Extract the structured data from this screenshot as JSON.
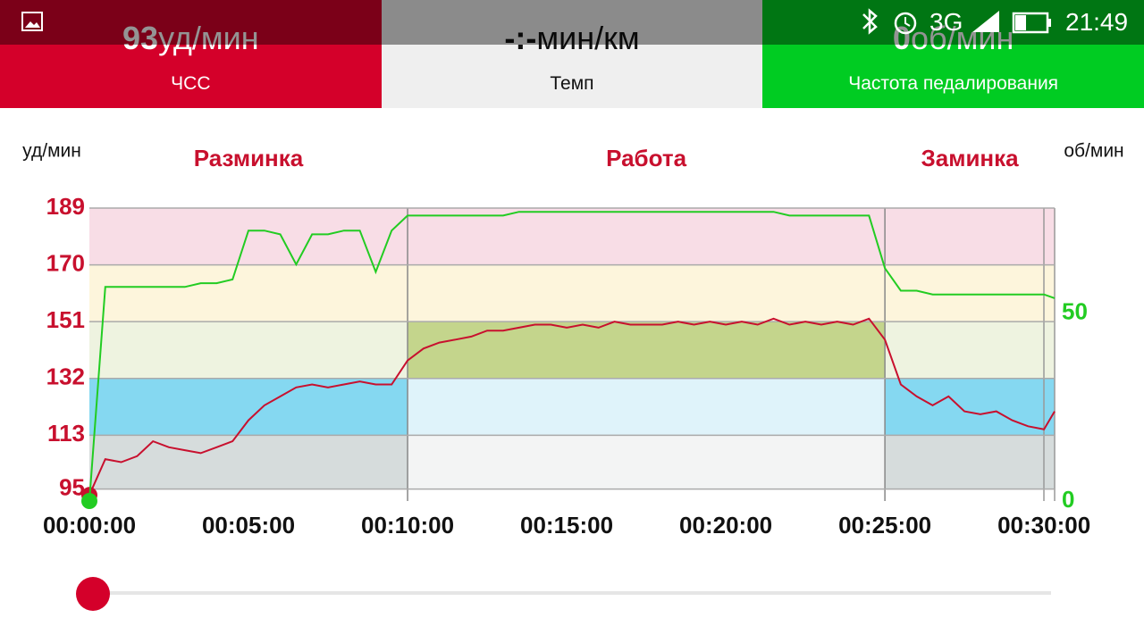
{
  "status_bar": {
    "network": "3G",
    "time": "21:49"
  },
  "tiles": [
    {
      "value": 93,
      "unit": "уд/мин",
      "label": "ЧСС",
      "color": "#d4002a"
    },
    {
      "value": "-:-",
      "unit": "мин/км",
      "label": "Темп",
      "color": "#efefef"
    },
    {
      "value": 0,
      "unit": "об/мин",
      "label": "Частота педалирования",
      "color": "#00cc22"
    }
  ],
  "chart_data": {
    "type": "line",
    "ylabel": "уд/мин",
    "y2label": "об/мин",
    "x": [
      0,
      30,
      60,
      90,
      120,
      150,
      180,
      210,
      240,
      270,
      300,
      330,
      360,
      390,
      420,
      450,
      480,
      510,
      540,
      570,
      600,
      630,
      660,
      690,
      720,
      750,
      780,
      810,
      840,
      870,
      900,
      930,
      960,
      990,
      1020,
      1050,
      1080,
      1110,
      1140,
      1170,
      1200,
      1230,
      1260,
      1290,
      1320,
      1350,
      1380,
      1410,
      1440,
      1470,
      1500,
      1530,
      1560,
      1590,
      1620,
      1650,
      1680,
      1710,
      1740,
      1770,
      1800,
      1820
    ],
    "xlim": [
      0,
      1820
    ],
    "xticks": [
      {
        "value": 0,
        "label": "00:00:00"
      },
      {
        "value": 300,
        "label": "00:05:00"
      },
      {
        "value": 600,
        "label": "00:10:00"
      },
      {
        "value": 900,
        "label": "00:15:00"
      },
      {
        "value": 1200,
        "label": "00:20:00"
      },
      {
        "value": 1500,
        "label": "00:25:00"
      },
      {
        "value": 1800,
        "label": "00:30:00"
      }
    ],
    "ylim": [
      91,
      189
    ],
    "yticks": [
      95,
      113,
      132,
      151,
      170,
      189
    ],
    "y2lim": [
      0,
      78
    ],
    "y2ticks": [
      0,
      50
    ],
    "zones": [
      {
        "range": [
          95,
          113
        ],
        "color": "#f3f4f4"
      },
      {
        "range": [
          113,
          132
        ],
        "color": "#dff3fa"
      },
      {
        "range": [
          132,
          151
        ],
        "color": "#eef3e0"
      },
      {
        "range": [
          151,
          170
        ],
        "color": "#fdf5dc"
      },
      {
        "range": [
          170,
          189
        ],
        "color": "#f8dde6"
      }
    ],
    "phases": [
      {
        "label": "Разминка",
        "range": [
          0,
          600
        ],
        "highlight": [
          {
            "zone": 0,
            "color": "#d6dcdc"
          },
          {
            "zone": 1,
            "color": "#85d8f1"
          }
        ]
      },
      {
        "label": "Работа",
        "range": [
          600,
          1500
        ],
        "highlight": [
          {
            "zone": 2,
            "color": "#c4d58c"
          }
        ]
      },
      {
        "label": "Заминка",
        "range": [
          1500,
          1820
        ],
        "highlight": [
          {
            "zone": 0,
            "color": "#d6dcdc"
          },
          {
            "zone": 1,
            "color": "#85d8f1"
          }
        ]
      }
    ],
    "series": [
      {
        "color": "#c8102e",
        "values": [
          93,
          105,
          104,
          106,
          111,
          109,
          108,
          107,
          109,
          111,
          118,
          123,
          126,
          129,
          130,
          129,
          130,
          131,
          130,
          130,
          138,
          142,
          144,
          145,
          146,
          148,
          148,
          149,
          150,
          150,
          149,
          150,
          149,
          151,
          150,
          150,
          150,
          151,
          150,
          151,
          150,
          151,
          150,
          152,
          150,
          151,
          150,
          151,
          150,
          152,
          145,
          130,
          126,
          123,
          126,
          121,
          120,
          121,
          118,
          116,
          115,
          121
        ]
      },
      {
        "color": "#22cc22",
        "axis": "y2",
        "values": [
          0,
          57,
          57,
          57,
          57,
          57,
          57,
          58,
          58,
          59,
          72,
          72,
          71,
          63,
          71,
          71,
          72,
          72,
          61,
          72,
          76,
          76,
          76,
          76,
          76,
          76,
          76,
          77,
          77,
          77,
          77,
          77,
          77,
          77,
          77,
          77,
          77,
          77,
          77,
          77,
          77,
          77,
          77,
          77,
          76,
          76,
          76,
          76,
          76,
          76,
          62,
          56,
          56,
          55,
          55,
          55,
          55,
          55,
          55,
          55,
          55,
          54
        ]
      }
    ]
  }
}
